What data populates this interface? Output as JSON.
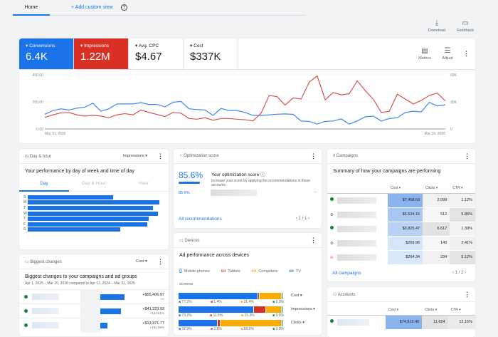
{
  "tabs": {
    "home": "Home",
    "add_custom_view": "+ Add custom view",
    "help_icon": "?"
  },
  "toolbar": {
    "download": "Download",
    "feedback": "Feedback"
  },
  "metrics": [
    {
      "label": "Conversions",
      "value": "6.4K",
      "color": "#1a73e8"
    },
    {
      "label": "Impressions",
      "value": "1.22M",
      "color": "#d93025"
    },
    {
      "label": "Avg. CPC",
      "value": "$4.67"
    },
    {
      "label": "Cost",
      "value": "$337K"
    }
  ],
  "chart_actions": {
    "metrics": "Metrics",
    "adjust": "Adjust"
  },
  "chart_data": {
    "type": "line",
    "x_start": "Mar 31, 2025",
    "x_end": "Mar 16, 2026",
    "left_ticks": [
      "400.00",
      "200.00",
      "0.00"
    ],
    "right_ticks": [
      "60K",
      "30K",
      "0"
    ],
    "ylim_left": [
      0,
      400
    ],
    "ylim_right": [
      0,
      60000
    ],
    "grid": true,
    "series": [
      {
        "name": "Conversions",
        "axis": "left",
        "color": "#4285f4",
        "values": [
          108,
          135,
          149,
          140,
          154,
          161,
          190,
          131,
          149,
          185,
          185,
          185,
          194,
          181,
          181,
          163,
          197,
          203,
          149,
          143,
          140,
          100,
          152,
          136,
          136,
          122,
          100,
          100,
          104,
          109,
          111,
          108,
          59,
          56,
          36,
          56,
          59,
          74,
          36,
          59,
          90,
          95,
          59,
          77,
          83,
          122,
          131,
          126,
          197,
          170,
          179
        ]
      },
      {
        "name": "Impressions",
        "axis": "right",
        "color": "#d9534f",
        "values": [
          12900,
          15600,
          17800,
          18300,
          15600,
          14300,
          15100,
          14300,
          12400,
          15600,
          17000,
          15600,
          21000,
          18300,
          16100,
          13700,
          18300,
          17500,
          11600,
          10800,
          12400,
          9700,
          11600,
          11600,
          10800,
          10200,
          8900,
          17500,
          37100,
          35800,
          26400,
          34400,
          33100,
          51900,
          58700,
          32300,
          40400,
          37700,
          39000,
          53300,
          42500,
          33100,
          18300,
          19600,
          38500,
          33100,
          27700,
          31700,
          37100,
          39800,
          30900
        ]
      }
    ]
  },
  "day_hour": {
    "title": "Day & hour",
    "dropdown": "Impressions",
    "subtitle": "Your performance by day of week and time of day",
    "tabs": [
      "Day",
      "Day & Hour",
      "Hour"
    ],
    "days": [
      "S",
      "M",
      "T",
      "W",
      "T",
      "F",
      "S"
    ],
    "values": [
      0.65,
      1.0,
      0.95,
      0.99,
      0.92,
      0.91,
      0.7
    ]
  },
  "optimization": {
    "title": "Optimization score",
    "score": "85.6%",
    "score_value": 0.856,
    "heading": "Your optimization score",
    "desc": "Increase your score by applying the recommendations in these accounts",
    "row_score": "85.6%",
    "link": "All recommendations",
    "pager": "1 / 1"
  },
  "devices": {
    "title": "Devices",
    "subtitle": "Ad performance across devices",
    "legend": [
      "Mobile phones",
      "Tablets",
      "Computers",
      "TV screens"
    ],
    "colors": [
      "#1a73e8",
      "#d93025",
      "#f9ab00",
      "#188038"
    ],
    "rows": [
      {
        "metric": "Cost",
        "values": [
          77.2,
          1.4,
          21.4,
          0.0
        ],
        "labels": [
          "77.2%",
          "1.4%",
          "21.4%",
          "0.0%"
        ]
      },
      {
        "metric": "Impressions",
        "values": [
          73.2,
          11.5,
          15.3,
          0.0
        ],
        "labels": [
          "73.2%",
          "11.5%",
          "15.3%",
          "0.0%"
        ]
      },
      {
        "metric": "Clicks",
        "values": [
          37.9,
          2.5,
          59.6,
          0.0
        ],
        "labels": [
          "37.9%",
          "2.5%",
          "59.6%",
          "0.0%"
        ]
      }
    ]
  },
  "biggest": {
    "title": "Biggest changes",
    "dropdown": "Cost",
    "subtitle": "Biggest changes to your campaigns and ad groups",
    "range": "Apr 1, 2025 – Mar 20, 2026 compared to Apr 12, 2024 – Mar 31, 2025",
    "rows": [
      {
        "value": "+$55,406.97",
        "change": "+∞",
        "bar": 1.0
      },
      {
        "value": "+$41,323.93",
        "change": "+124.51%",
        "bar": 0.86
      },
      {
        "value": "+$13,971.77",
        "change": "+762.06%",
        "bar": 0.3
      }
    ]
  },
  "campaigns": {
    "title": "Campaigns",
    "subtitle": "Summary of how your campaigns are performing",
    "columns": [
      "Cost",
      "Clicks",
      "CTR"
    ],
    "rows": [
      {
        "status": "green",
        "cost": "$7,458.63",
        "clicks": "2,099",
        "ctr": "1.12%"
      },
      {
        "status": "gear",
        "cost": "$5,524.16",
        "clicks": "512",
        "ctr": "5.86%"
      },
      {
        "status": "green",
        "cost": "$3,825.47",
        "clicks": "6,617",
        "ctr": "1.39%"
      },
      {
        "status": "gear",
        "cost": "$269.96",
        "clicks": "140",
        "ctr": "2.41%"
      },
      {
        "status": "removed",
        "cost": "$264.34",
        "clicks": "234",
        "ctr": "5.12%"
      }
    ],
    "link": "All campaigns",
    "pager": "1 / 2"
  },
  "accounts": {
    "title": "Accounts",
    "columns": [
      "Cost",
      "Clicks",
      "CTR"
    ],
    "rows": [
      {
        "cost": "$74,512.46",
        "clicks": "11,624",
        "ctr": "12.15%"
      }
    ]
  }
}
